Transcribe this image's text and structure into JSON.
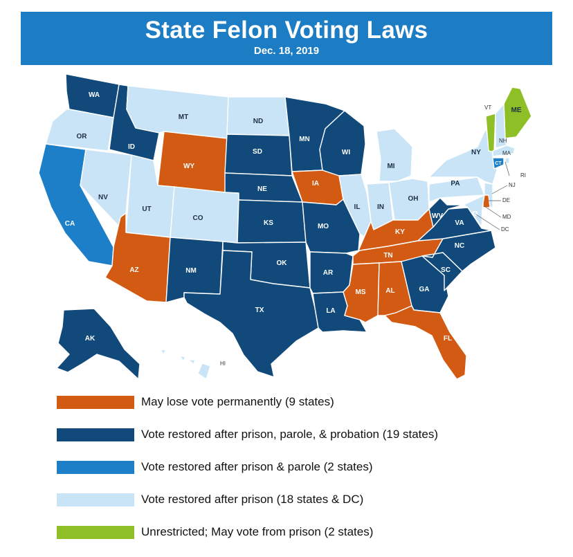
{
  "header": {
    "title": "State Felon Voting Laws",
    "date": "Dec. 18, 2019"
  },
  "colors": {
    "permanent": "#d35a12",
    "probation": "#10497a",
    "parole": "#1d7fc8",
    "prison": "#c8e4f6",
    "unrestricted": "#8fbf26"
  },
  "states": {
    "WA": "probation",
    "OR": "prison",
    "CA": "parole",
    "NV": "prison",
    "ID": "probation",
    "MT": "prison",
    "WY": "permanent",
    "UT": "prison",
    "CO": "prison",
    "AZ": "permanent",
    "NM": "probation",
    "ND": "prison",
    "SD": "probation",
    "NE": "probation",
    "KS": "probation",
    "OK": "probation",
    "TX": "probation",
    "MN": "probation",
    "IA": "permanent",
    "MO": "probation",
    "AR": "probation",
    "LA": "probation",
    "WI": "probation",
    "IL": "prison",
    "MI": "prison",
    "IN": "prison",
    "OH": "prison",
    "KY": "permanent",
    "TN": "permanent",
    "MS": "permanent",
    "AL": "permanent",
    "GA": "probation",
    "FL": "permanent",
    "SC": "probation",
    "NC": "probation",
    "VA": "probation",
    "WV": "probation",
    "PA": "prison",
    "NY": "prison",
    "VT": "unrestricted",
    "ME": "unrestricted",
    "NH": "prison",
    "MA": "prison",
    "CT": "parole",
    "RI": "prison",
    "NJ": "prison",
    "DE": "permanent",
    "MD": "prison",
    "DC": "prison",
    "AK": "probation",
    "HI": "prison"
  },
  "labels": {
    "WA": "WA",
    "OR": "OR",
    "CA": "CA",
    "NV": "NV",
    "ID": "ID",
    "MT": "MT",
    "WY": "WY",
    "UT": "UT",
    "CO": "CO",
    "AZ": "AZ",
    "NM": "NM",
    "ND": "ND",
    "SD": "SD",
    "NE": "NE",
    "KS": "KS",
    "OK": "OK",
    "TX": "TX",
    "MN": "MN",
    "IA": "IA",
    "MO": "MO",
    "AR": "AR",
    "LA": "LA",
    "WI": "WI",
    "IL": "IL",
    "MI": "MI",
    "IN": "IN",
    "OH": "OH",
    "KY": "KY",
    "TN": "TN",
    "MS": "MS",
    "AL": "AL",
    "GA": "GA",
    "FL": "FL",
    "SC": "SC",
    "NC": "NC",
    "VA": "VA",
    "WV": "WV",
    "PA": "PA",
    "NY": "NY",
    "VT": "VT",
    "ME": "ME",
    "NH": "NH",
    "MA": "MA",
    "CT": "CT",
    "RI": "RI",
    "NJ": "NJ",
    "DE": "DE",
    "MD": "MD",
    "DC": "DC",
    "AK": "AK",
    "HI": "HI"
  },
  "legend": [
    {
      "key": "permanent",
      "label": "May lose vote permanently (9 states)"
    },
    {
      "key": "probation",
      "label": "Vote restored after prison, parole, & probation (19 states)"
    },
    {
      "key": "parole",
      "label": "Vote restored after prison & parole (2 states)"
    },
    {
      "key": "prison",
      "label": "Vote restored after prison (18 states & DC)"
    },
    {
      "key": "unrestricted",
      "label": "Unrestricted; May vote from prison (2 states)"
    }
  ]
}
